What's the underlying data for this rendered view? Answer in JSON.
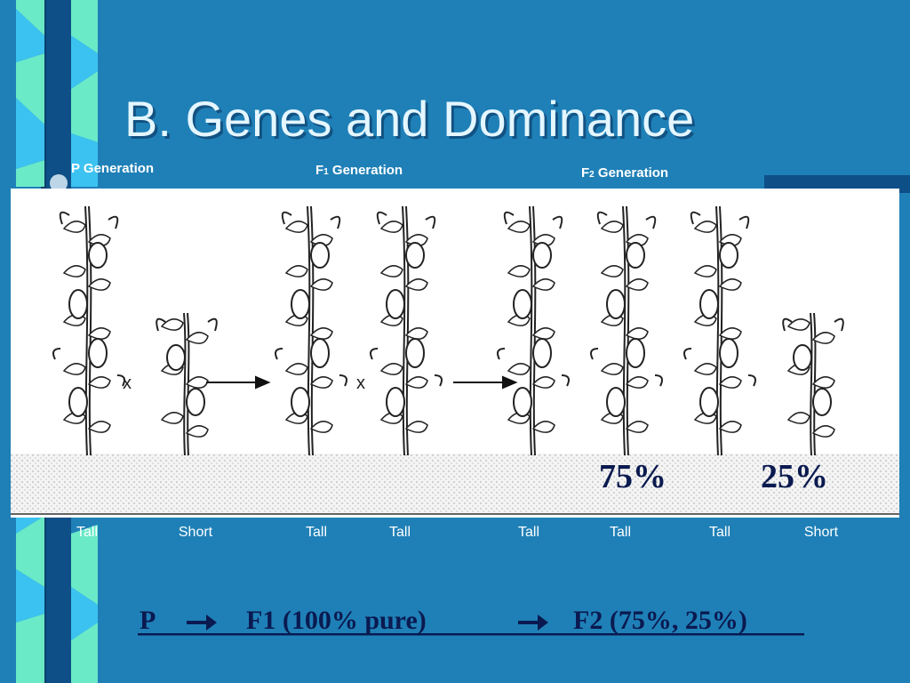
{
  "title": "B. Genes and Dominance",
  "generations": [
    {
      "letter": "P",
      "rest": "Generation"
    },
    {
      "letter": "F",
      "subscript": "1",
      "rest": "Generation"
    },
    {
      "letter": "F",
      "subscript": "2",
      "rest": "Generation"
    }
  ],
  "cross_marks": [
    "x",
    "x"
  ],
  "percentages": [
    "75%",
    "25%"
  ],
  "plant_labels": [
    "Tall",
    "Short",
    "Tall",
    "Tall",
    "Tall",
    "Tall",
    "Tall",
    "Short"
  ],
  "summary": {
    "p": "P",
    "f1": "F1 (100% pure)",
    "f2": "F2 (75%, 25%)"
  }
}
